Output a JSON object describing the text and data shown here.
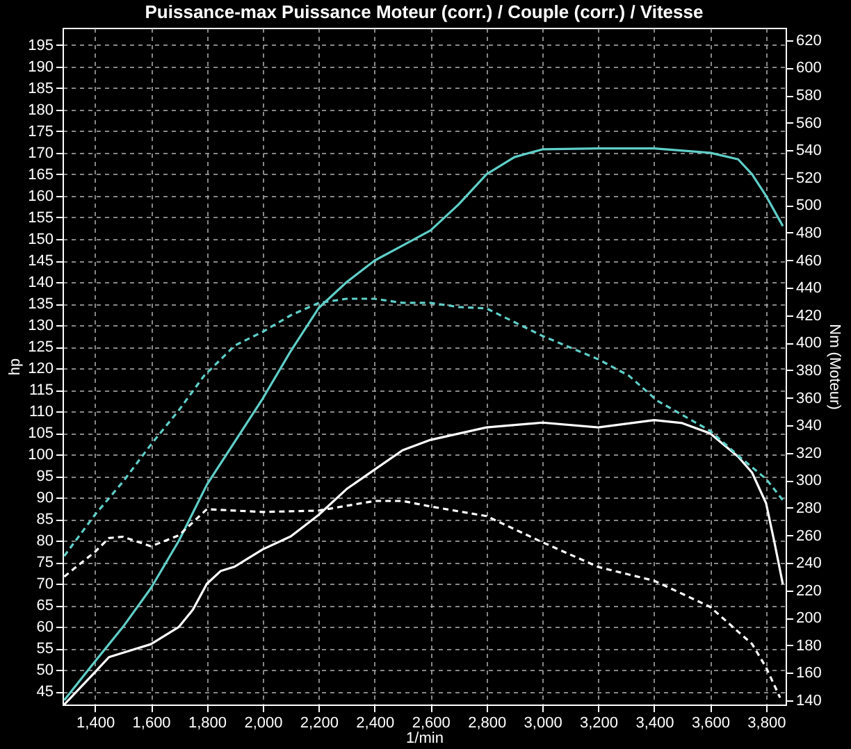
{
  "chart_data": {
    "type": "line",
    "title": "Puissance-max Puissance Moteur (corr.) / Couple (corr.) / Vitesse",
    "xlabel": "1/min",
    "ylabel": "hp",
    "y2label": "Nm (Moteur)",
    "xlim": [
      1284,
      3870
    ],
    "xticks": [
      {
        "value": 1400,
        "label": "1,400"
      },
      {
        "value": 1600,
        "label": "1,600"
      },
      {
        "value": 1800,
        "label": "1,800"
      },
      {
        "value": 2000,
        "label": "2,000"
      },
      {
        "value": 2200,
        "label": "2,200"
      },
      {
        "value": 2400,
        "label": "2,400"
      },
      {
        "value": 2600,
        "label": "2,600"
      },
      {
        "value": 2800,
        "label": "2,800"
      },
      {
        "value": 3000,
        "label": "3,000"
      },
      {
        "value": 3200,
        "label": "3,200"
      },
      {
        "value": 3400,
        "label": "3,400"
      },
      {
        "value": 3600,
        "label": "3,600"
      },
      {
        "value": 3800,
        "label": "3,800"
      }
    ],
    "ylim": [
      42,
      199
    ],
    "yticks": [
      45,
      50,
      55,
      60,
      65,
      70,
      75,
      80,
      85,
      90,
      95,
      100,
      105,
      110,
      115,
      120,
      125,
      130,
      135,
      140,
      145,
      150,
      155,
      160,
      165,
      170,
      175,
      180,
      185,
      190,
      195
    ],
    "y2lim": [
      137,
      629
    ],
    "y2ticks": [
      140,
      160,
      180,
      200,
      220,
      240,
      260,
      280,
      300,
      320,
      340,
      360,
      380,
      400,
      420,
      440,
      460,
      480,
      500,
      520,
      540,
      560,
      580,
      600,
      620
    ],
    "grid": true,
    "series": [
      {
        "color": "#5fcfc8",
        "line_style": "solid",
        "x": [
          1290,
          1400,
          1500,
          1600,
          1700,
          1800,
          1900,
          2000,
          2100,
          2200,
          2300,
          2400,
          2500,
          2600,
          2700,
          2800,
          2900,
          3000,
          3200,
          3400,
          3600,
          3700,
          3750,
          3800,
          3860
        ],
        "values": [
          43,
          52,
          60,
          69,
          80,
          93,
          103,
          113,
          124,
          134,
          140,
          145,
          148.5,
          152,
          158,
          165,
          169,
          170.8,
          171,
          171,
          170,
          168.5,
          165,
          160,
          153
        ]
      },
      {
        "color": "#ffffff",
        "line_style": "solid",
        "x": [
          1290,
          1400,
          1450,
          1500,
          1600,
          1700,
          1750,
          1800,
          1850,
          1900,
          2000,
          2100,
          2200,
          2300,
          2400,
          2500,
          2600,
          2800,
          3000,
          3200,
          3400,
          3500,
          3600,
          3700,
          3750,
          3800,
          3830,
          3860
        ],
        "values": [
          42,
          49.5,
          53,
          54,
          56,
          60,
          64,
          70,
          73,
          74,
          78,
          81,
          86,
          92,
          96.5,
          101,
          103.4,
          106.3,
          107.4,
          106.3,
          108,
          107.3,
          104.9,
          99.5,
          95.8,
          88.7,
          79.6,
          69.9
        ]
      },
      {
        "color": "#5fcfc8",
        "line_style": "dashed",
        "axis": "y2",
        "x": [
          1290,
          1400,
          1500,
          1600,
          1700,
          1790,
          1900,
          2000,
          2100,
          2200,
          2300,
          2400,
          2500,
          2600,
          2700,
          2800,
          2850,
          3000,
          3200,
          3310,
          3410,
          3600,
          3700,
          3800,
          3866
        ],
        "values": [
          245,
          275,
          299,
          326,
          351,
          376,
          398,
          408,
          420,
          429,
          432,
          432,
          429,
          429,
          426,
          425,
          420,
          405,
          388,
          376,
          358,
          336,
          318,
          301,
          284
        ]
      },
      {
        "color": "#ffffff",
        "line_style": "dashed",
        "axis": "y2",
        "x": [
          1290,
          1400,
          1450,
          1500,
          1600,
          1700,
          1800,
          1900,
          2000,
          2200,
          2400,
          2500,
          2600,
          2800,
          3000,
          3200,
          3400,
          3600,
          3700,
          3750,
          3800,
          3850
        ],
        "values": [
          230,
          248,
          258,
          259,
          252,
          260,
          279,
          278,
          277,
          278,
          285,
          285,
          281,
          274,
          255,
          237,
          227,
          208,
          190,
          181,
          164,
          142
        ]
      }
    ]
  }
}
